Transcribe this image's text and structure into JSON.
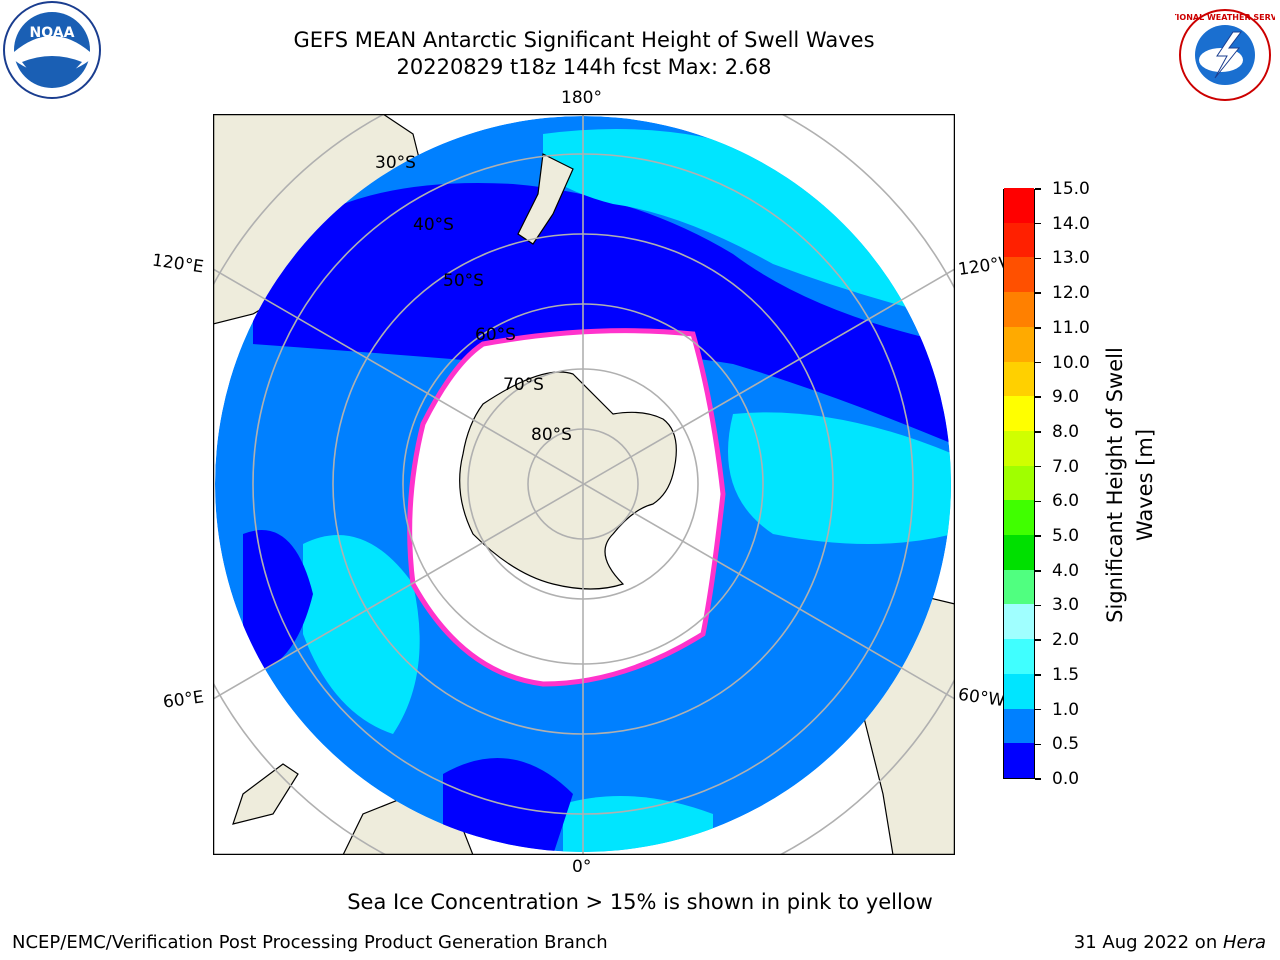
{
  "title": {
    "line1": "GEFS MEAN Antarctic Significant Height of Swell Waves",
    "line2": "20220829 t18z 144h fcst   Max: 2.68"
  },
  "logos": {
    "noaa_text": "NOAA",
    "nws_text": "NATIONAL WEATHER SERVICE"
  },
  "map": {
    "projection": "south-polar-stereographic",
    "longitude_labels": {
      "top": "180°",
      "bottom": "0°",
      "upper_left": "120°E",
      "lower_left": "60°E",
      "upper_right": "120°W",
      "lower_right": "60°W"
    },
    "latitude_labels": [
      "30°S",
      "40°S",
      "50°S",
      "60°S",
      "70°S",
      "80°S"
    ],
    "colors": {
      "land": "#eeecdc",
      "ice_free_white": "#ffffff",
      "grid": "#b0b0b0",
      "sea_ice_edge": "#ff33cc"
    }
  },
  "colorbar": {
    "label": "Significant Height of Swell Waves [m]",
    "ticks": [
      "0.0",
      "0.5",
      "1.0",
      "1.5",
      "2.0",
      "3.0",
      "4.0",
      "5.0",
      "6.0",
      "7.0",
      "8.0",
      "9.0",
      "10.0",
      "11.0",
      "12.0",
      "13.0",
      "14.0",
      "15.0"
    ],
    "colors": [
      "#0000ff",
      "#0080ff",
      "#00e5ff",
      "#40ffff",
      "#a0ffff",
      "#50ff80",
      "#00e000",
      "#40ff00",
      "#a0ff00",
      "#d0ff00",
      "#ffff00",
      "#ffd000",
      "#ffaa00",
      "#ff8000",
      "#ff5000",
      "#ff2000",
      "#ff0000"
    ]
  },
  "note": "Sea Ice Concentration > 15% is shown in pink to yellow",
  "footer": {
    "left": "NCEP/EMC/Verification Post Processing Product Generation Branch",
    "right_date": "31 Aug 2022 on ",
    "right_host": "Hera"
  }
}
